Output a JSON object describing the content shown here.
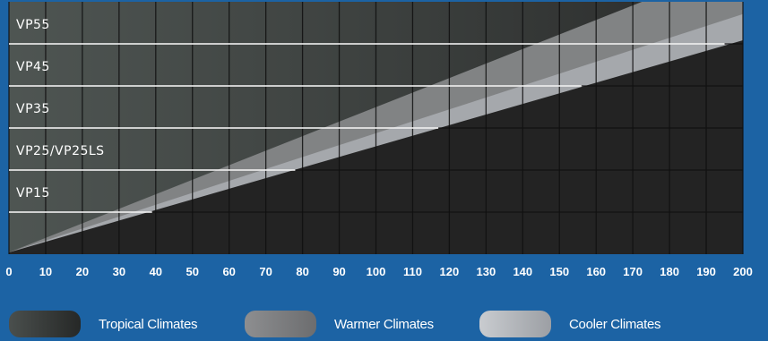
{
  "chart_data": {
    "type": "area",
    "models": [
      "VP55",
      "VP45",
      "VP35",
      "VP25/VP25LS",
      "VP15"
    ],
    "x_ticks": [
      "0",
      "10",
      "20",
      "30",
      "40",
      "50",
      "60",
      "70",
      "80",
      "90",
      "100",
      "110",
      "120",
      "130",
      "140",
      "150",
      "160",
      "170",
      "180",
      "190",
      "200"
    ],
    "xlim": [
      0,
      200
    ],
    "model_line_x_ends": [
      195,
      156,
      117,
      78,
      39
    ],
    "climate_bands": [
      {
        "name": "Tropical Climates",
        "color": "#3b3d3c",
        "upper_x_at_top": 146
      },
      {
        "name": "Warmer Climates",
        "color": "#7d7e80",
        "upper_x_at_top": 178
      },
      {
        "name": "Cooler Climates",
        "color": "#b4b7bb",
        "upper_x_at_top": 200
      }
    ],
    "grid": true
  },
  "colors": {
    "background": "#1c63a4",
    "plot": "#232323",
    "grid": "#0f0f0f",
    "model_line": "#ffffff"
  }
}
